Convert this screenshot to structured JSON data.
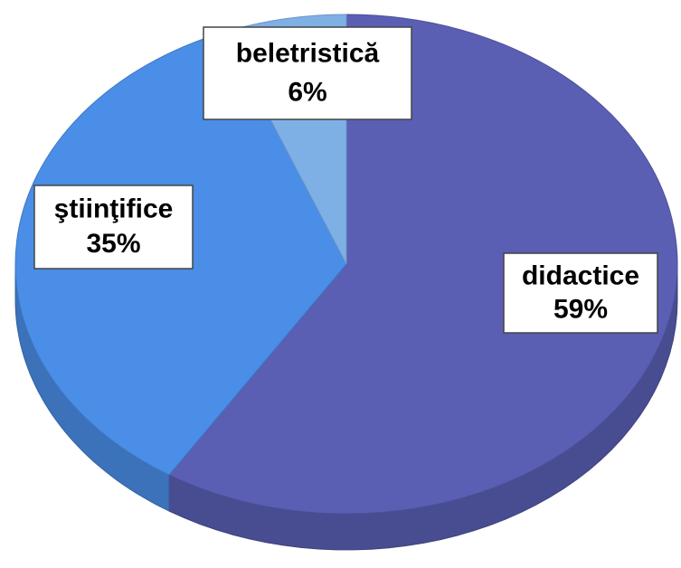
{
  "chart_data": {
    "type": "pie",
    "categories": [
      "didactice",
      "ştiinţifice",
      "beletristică"
    ],
    "values": [
      59,
      35,
      6
    ],
    "value_labels": [
      "59%",
      "35%",
      "6%"
    ],
    "colors": [
      "#5a5fb4",
      "#4a8ee8",
      "#7eb0e6"
    ]
  }
}
